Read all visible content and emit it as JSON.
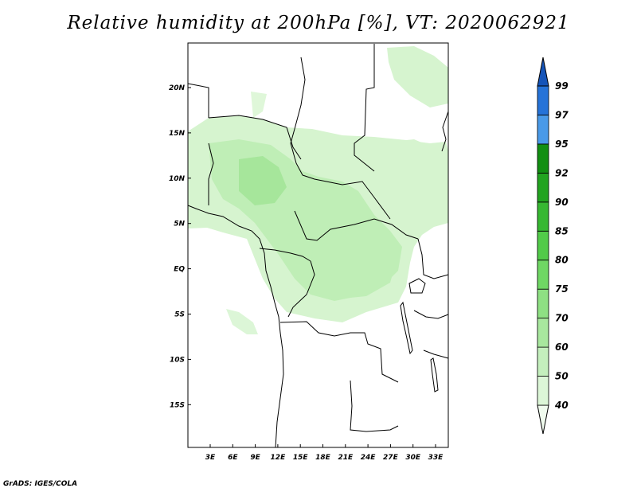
{
  "title": "Relative humidity at 200hPa [%], VT: 2020062921",
  "credit": "GrADS: IGES/COLA",
  "map": {
    "variable": "Relative humidity",
    "level": "200hPa",
    "units": "%",
    "valid_time": "2020062921",
    "lat_labels": [
      "20N",
      "15N",
      "10N",
      "5N",
      "EQ",
      "5S",
      "10S",
      "15S"
    ],
    "lon_labels": [
      "3E",
      "6E",
      "9E",
      "12E",
      "15E",
      "18E",
      "21E",
      "24E",
      "27E",
      "30E",
      "33E"
    ]
  },
  "colorbar": {
    "levels": [
      "40",
      "50",
      "60",
      "70",
      "75",
      "80",
      "85",
      "90",
      "92",
      "95",
      "97",
      "99"
    ],
    "colors": [
      "#f0fbee",
      "#dcf6d7",
      "#c4efbd",
      "#a8e79e",
      "#8ee083",
      "#6fd764",
      "#52cb49",
      "#37b832",
      "#22a420",
      "#128f12",
      "#4a9ae8",
      "#2673d8",
      "#1554b8"
    ]
  }
}
